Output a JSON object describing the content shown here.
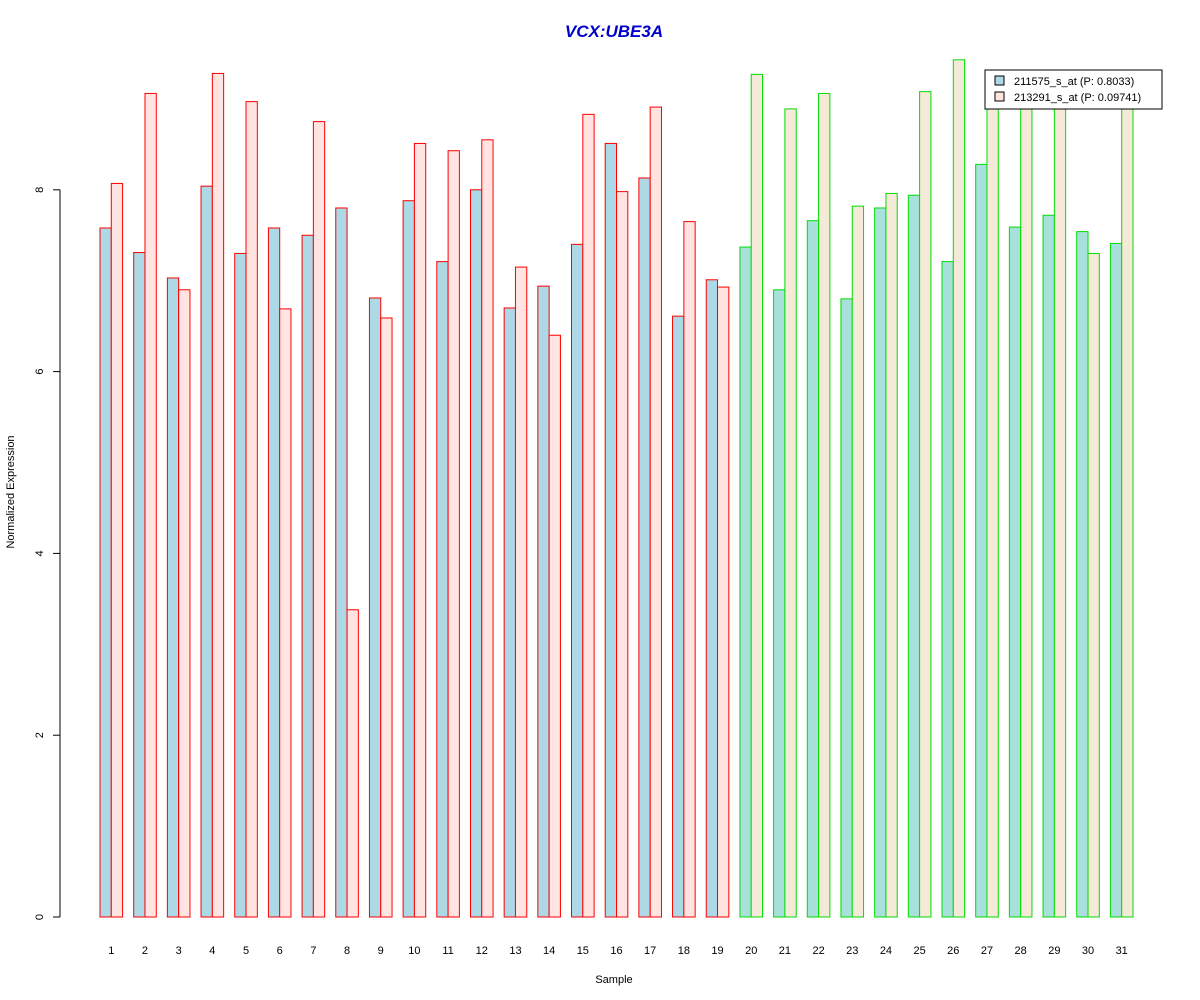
{
  "chart_data": {
    "type": "bar",
    "title": "VCX:UBE3A",
    "xlabel": "Sample",
    "ylabel": "Normalized Expression",
    "ylim": [
      0,
      9.5
    ],
    "yticks": [
      "0",
      "2",
      "4",
      "6",
      "8"
    ],
    "categories": [
      "1",
      "2",
      "3",
      "4",
      "5",
      "6",
      "7",
      "8",
      "9",
      "10",
      "11",
      "12",
      "13",
      "14",
      "15",
      "16",
      "17",
      "18",
      "19",
      "20",
      "21",
      "22",
      "23",
      "24",
      "25",
      "26",
      "27",
      "28",
      "29",
      "30",
      "31"
    ],
    "series": [
      {
        "name": "211575_s_at (P: 0.8033)",
        "values": [
          7.58,
          7.31,
          7.03,
          8.04,
          7.3,
          7.58,
          7.5,
          7.8,
          6.81,
          7.88,
          7.21,
          8.0,
          6.7,
          6.94,
          7.4,
          8.51,
          8.13,
          6.61,
          7.01,
          7.37,
          6.9,
          7.66,
          6.8,
          7.8,
          7.94,
          7.21,
          8.28,
          7.59,
          7.72,
          7.54,
          7.41
        ]
      },
      {
        "name": "213291_s_at (P: 0.09741)",
        "values": [
          8.07,
          9.06,
          6.9,
          9.28,
          8.97,
          6.69,
          8.75,
          3.38,
          6.59,
          8.51,
          8.43,
          8.55,
          7.15,
          6.4,
          8.83,
          7.98,
          8.91,
          7.65,
          6.93,
          9.27,
          8.89,
          9.06,
          7.82,
          7.96,
          9.08,
          9.43,
          8.9,
          8.9,
          8.9,
          7.3,
          8.9
        ]
      }
    ],
    "group_of_sample": [
      "a",
      "a",
      "a",
      "a",
      "a",
      "a",
      "a",
      "a",
      "a",
      "a",
      "a",
      "a",
      "a",
      "a",
      "a",
      "a",
      "a",
      "a",
      "a",
      "b",
      "b",
      "b",
      "b",
      "b",
      "b",
      "b",
      "b",
      "b",
      "b",
      "b",
      "b"
    ],
    "colors": {
      "title": "#0000cc",
      "group_a_border": "#ff0000",
      "group_b_border": "#00dd00",
      "group_a_fill_series1": "#add8e6",
      "group_a_fill_series2": "#ffe4e1",
      "group_b_fill_series1": "#a8e0dc",
      "group_b_fill_series2": "#f5ead8",
      "legend_swatch_1": "#add8e6",
      "legend_swatch_2": "#ffe4e1",
      "axis": "#000000"
    },
    "legend_position": "top-right",
    "grid": false
  }
}
